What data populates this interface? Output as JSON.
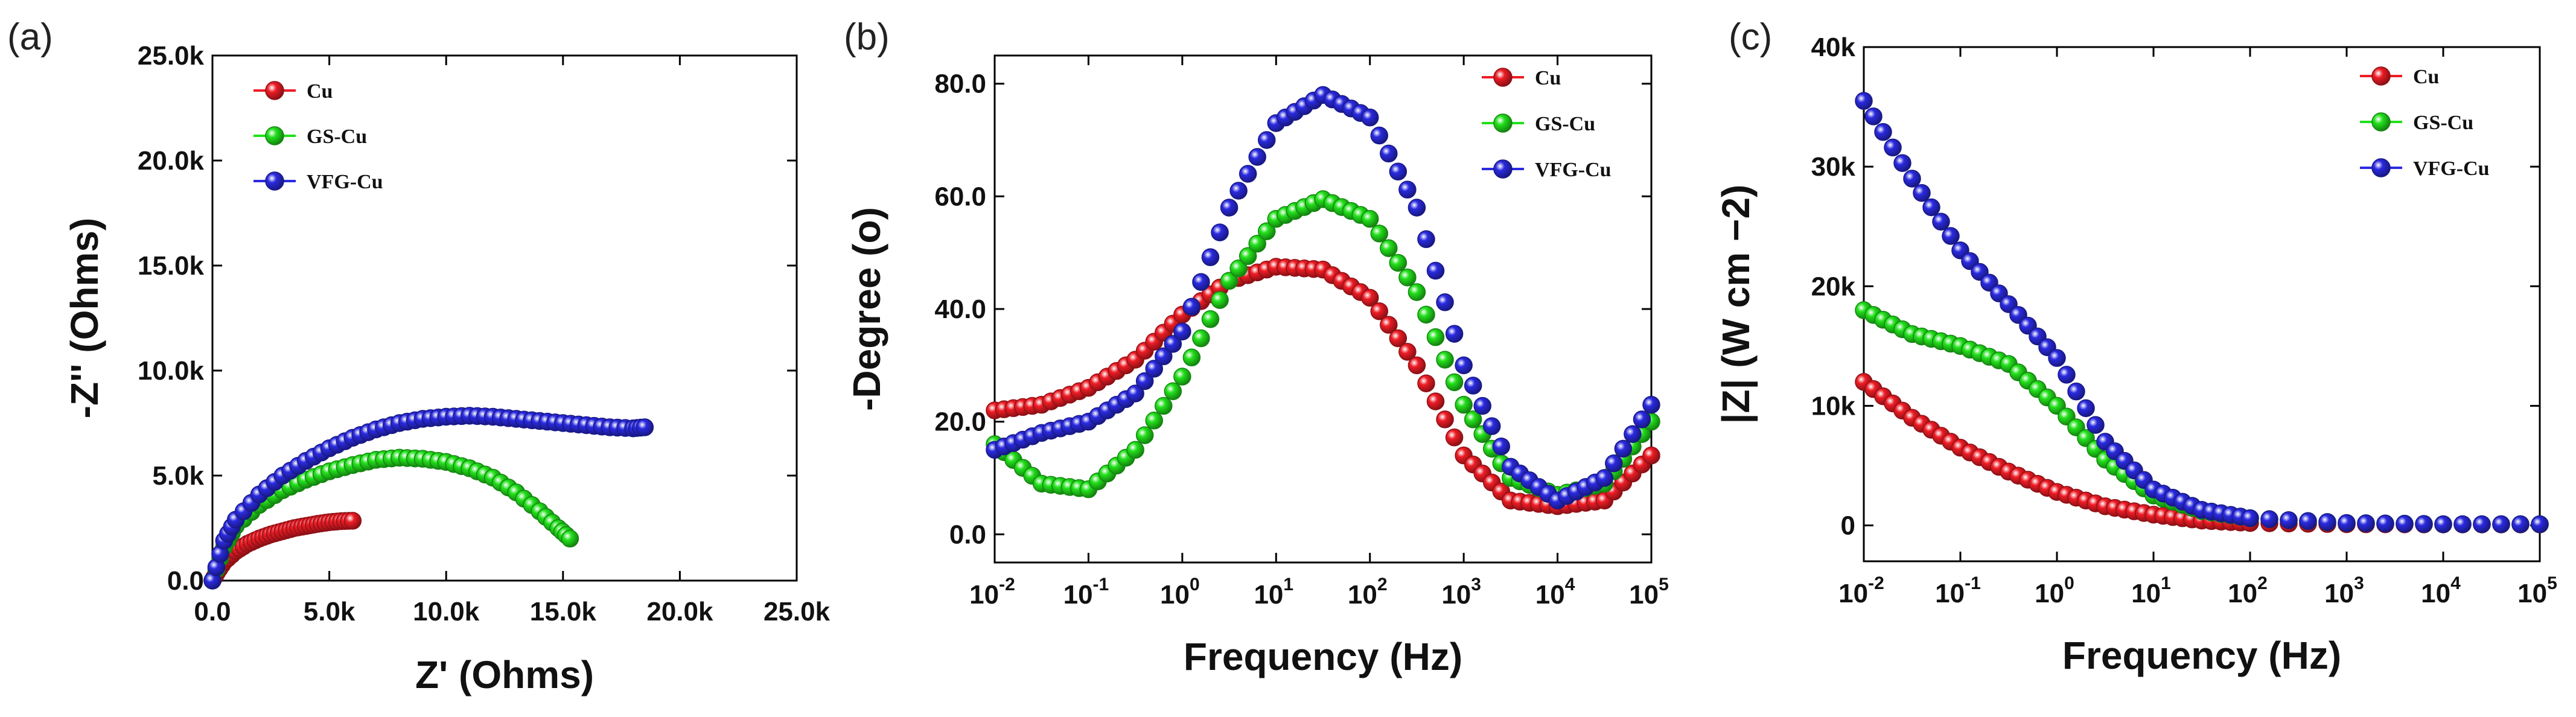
{
  "chart_data": [
    {
      "panel": "(a)",
      "type": "scatter",
      "xlabel": "Z' (Ohms)",
      "ylabel": "-Z'' (Ohms)",
      "xlim": [
        0,
        25000
      ],
      "ylim": [
        0,
        25000
      ],
      "xticks": [
        0,
        5000,
        10000,
        15000,
        20000,
        25000
      ],
      "xtick_labels": [
        "0.0",
        "5.0k",
        "10.0k",
        "15.0k",
        "20.0k",
        "25.0k"
      ],
      "yticks": [
        0,
        5000,
        10000,
        15000,
        20000,
        25000
      ],
      "ytick_labels": [
        "0.0",
        "5.0k",
        "10.0k",
        "15.0k",
        "20.0k",
        "25.0k"
      ],
      "legend": "top-left",
      "series": [
        {
          "name": "Cu",
          "color": "#ee1c25",
          "x": [
            0,
            200,
            500,
            1000,
            1500,
            2000,
            2500,
            3000,
            3500,
            4000,
            4500,
            5000,
            5500,
            6000
          ],
          "y": [
            0,
            400,
            900,
            1400,
            1750,
            2000,
            2200,
            2350,
            2500,
            2600,
            2700,
            2780,
            2830,
            2850
          ]
        },
        {
          "name": "GS-Cu",
          "color": "#22e01b",
          "x": [
            0,
            500,
            1000,
            2000,
            3000,
            4000,
            5000,
            6000,
            7000,
            8000,
            9000,
            10000,
            11000,
            12000,
            13000,
            14000,
            14800,
            15300
          ],
          "y": [
            0,
            1600,
            2600,
            3600,
            4300,
            4800,
            5200,
            5500,
            5750,
            5850,
            5800,
            5650,
            5350,
            4900,
            4200,
            3300,
            2500,
            2000
          ]
        },
        {
          "name": "VFG-Cu",
          "color": "#2a2ae0",
          "x": [
            0,
            500,
            1000,
            2000,
            3000,
            4000,
            5000,
            6000,
            7000,
            8000,
            9000,
            10000,
            11000,
            12000,
            13000,
            14000,
            15000,
            16000,
            17000,
            18000,
            18500
          ],
          "y": [
            0,
            1900,
            2900,
            4100,
            5000,
            5700,
            6300,
            6800,
            7200,
            7500,
            7700,
            7800,
            7850,
            7800,
            7700,
            7600,
            7500,
            7400,
            7300,
            7250,
            7300
          ]
        }
      ]
    },
    {
      "panel": "(b)",
      "type": "scatter",
      "xlabel": "Frequency (Hz)",
      "ylabel": "-Degree (o)",
      "xscale": "log",
      "xlim": [
        0.01,
        100000
      ],
      "ylim": [
        -5,
        85
      ],
      "xtick_exponents": [
        "-2",
        "-1",
        "0",
        "1",
        "2",
        "3",
        "4",
        "5"
      ],
      "yticks": [
        0,
        20,
        40,
        60,
        80
      ],
      "ytick_labels": [
        "0.0",
        "20.0",
        "40.0",
        "60.0",
        "80.0"
      ],
      "legend": "top-right",
      "series": [
        {
          "name": "Cu",
          "color": "#ee1c25",
          "log10_x": [
            -2,
            -1.5,
            -1,
            -0.5,
            0,
            0.5,
            1,
            1.5,
            2,
            2.5,
            3,
            3.5,
            4,
            4.5,
            5
          ],
          "y": [
            22,
            23,
            26,
            31,
            39,
            45,
            47.5,
            47,
            42,
            30,
            14,
            6,
            5,
            6,
            14
          ]
        },
        {
          "name": "GS-Cu",
          "color": "#22e01b",
          "log10_x": [
            -2,
            -1.5,
            -1,
            -0.5,
            0,
            0.5,
            1,
            1.5,
            2,
            2.5,
            3,
            3.5,
            4,
            4.5,
            5
          ],
          "y": [
            16,
            9,
            8,
            15,
            28,
            45,
            56,
            59.5,
            56,
            43,
            23,
            10,
            7,
            9,
            20
          ]
        },
        {
          "name": "VFG-Cu",
          "color": "#2a2ae0",
          "log10_x": [
            -2,
            -1.5,
            -1,
            -0.5,
            0,
            0.5,
            1,
            1.5,
            2,
            2.5,
            3,
            3.5,
            4,
            4.5,
            5
          ],
          "y": [
            15,
            18,
            20,
            25,
            36,
            58,
            73,
            78,
            74,
            58,
            30,
            12,
            6,
            10,
            23
          ]
        }
      ]
    },
    {
      "panel": "(c)",
      "type": "scatter",
      "xlabel": "Frequency (Hz)",
      "ylabel": "|Z| (W cm −2)",
      "xscale": "log",
      "xlim": [
        0.01,
        100000
      ],
      "ylim": [
        -3000,
        40000
      ],
      "xtick_exponents": [
        "-2",
        "-1",
        "0",
        "1",
        "2",
        "3",
        "4",
        "5"
      ],
      "yticks": [
        0,
        10000,
        20000,
        30000,
        40000
      ],
      "ytick_labels": [
        "0",
        "10k",
        "20k",
        "30k",
        "40k"
      ],
      "legend": "top-right",
      "series": [
        {
          "name": "Cu",
          "color": "#ee1c25",
          "log10_x": [
            -2,
            -1.5,
            -1,
            -0.5,
            0,
            0.5,
            1,
            1.5,
            2,
            3,
            4,
            5
          ],
          "y": [
            12000,
            9000,
            6500,
            4500,
            2800,
            1600,
            900,
            400,
            200,
            100,
            80,
            80
          ]
        },
        {
          "name": "GS-Cu",
          "color": "#22e01b",
          "log10_x": [
            -2,
            -1.5,
            -1,
            -0.5,
            0,
            0.5,
            1,
            1.5,
            2,
            3,
            4,
            5
          ],
          "y": [
            18000,
            16000,
            15000,
            13500,
            10000,
            5500,
            2500,
            1200,
            600,
            200,
            100,
            100
          ]
        },
        {
          "name": "VFG-Cu",
          "color": "#2a2ae0",
          "log10_x": [
            -2,
            -1.5,
            -1,
            -0.5,
            0,
            0.5,
            1,
            1.5,
            2,
            3,
            4,
            5
          ],
          "y": [
            35500,
            29000,
            23000,
            18500,
            14000,
            7000,
            3000,
            1300,
            600,
            200,
            100,
            100
          ]
        }
      ]
    }
  ]
}
